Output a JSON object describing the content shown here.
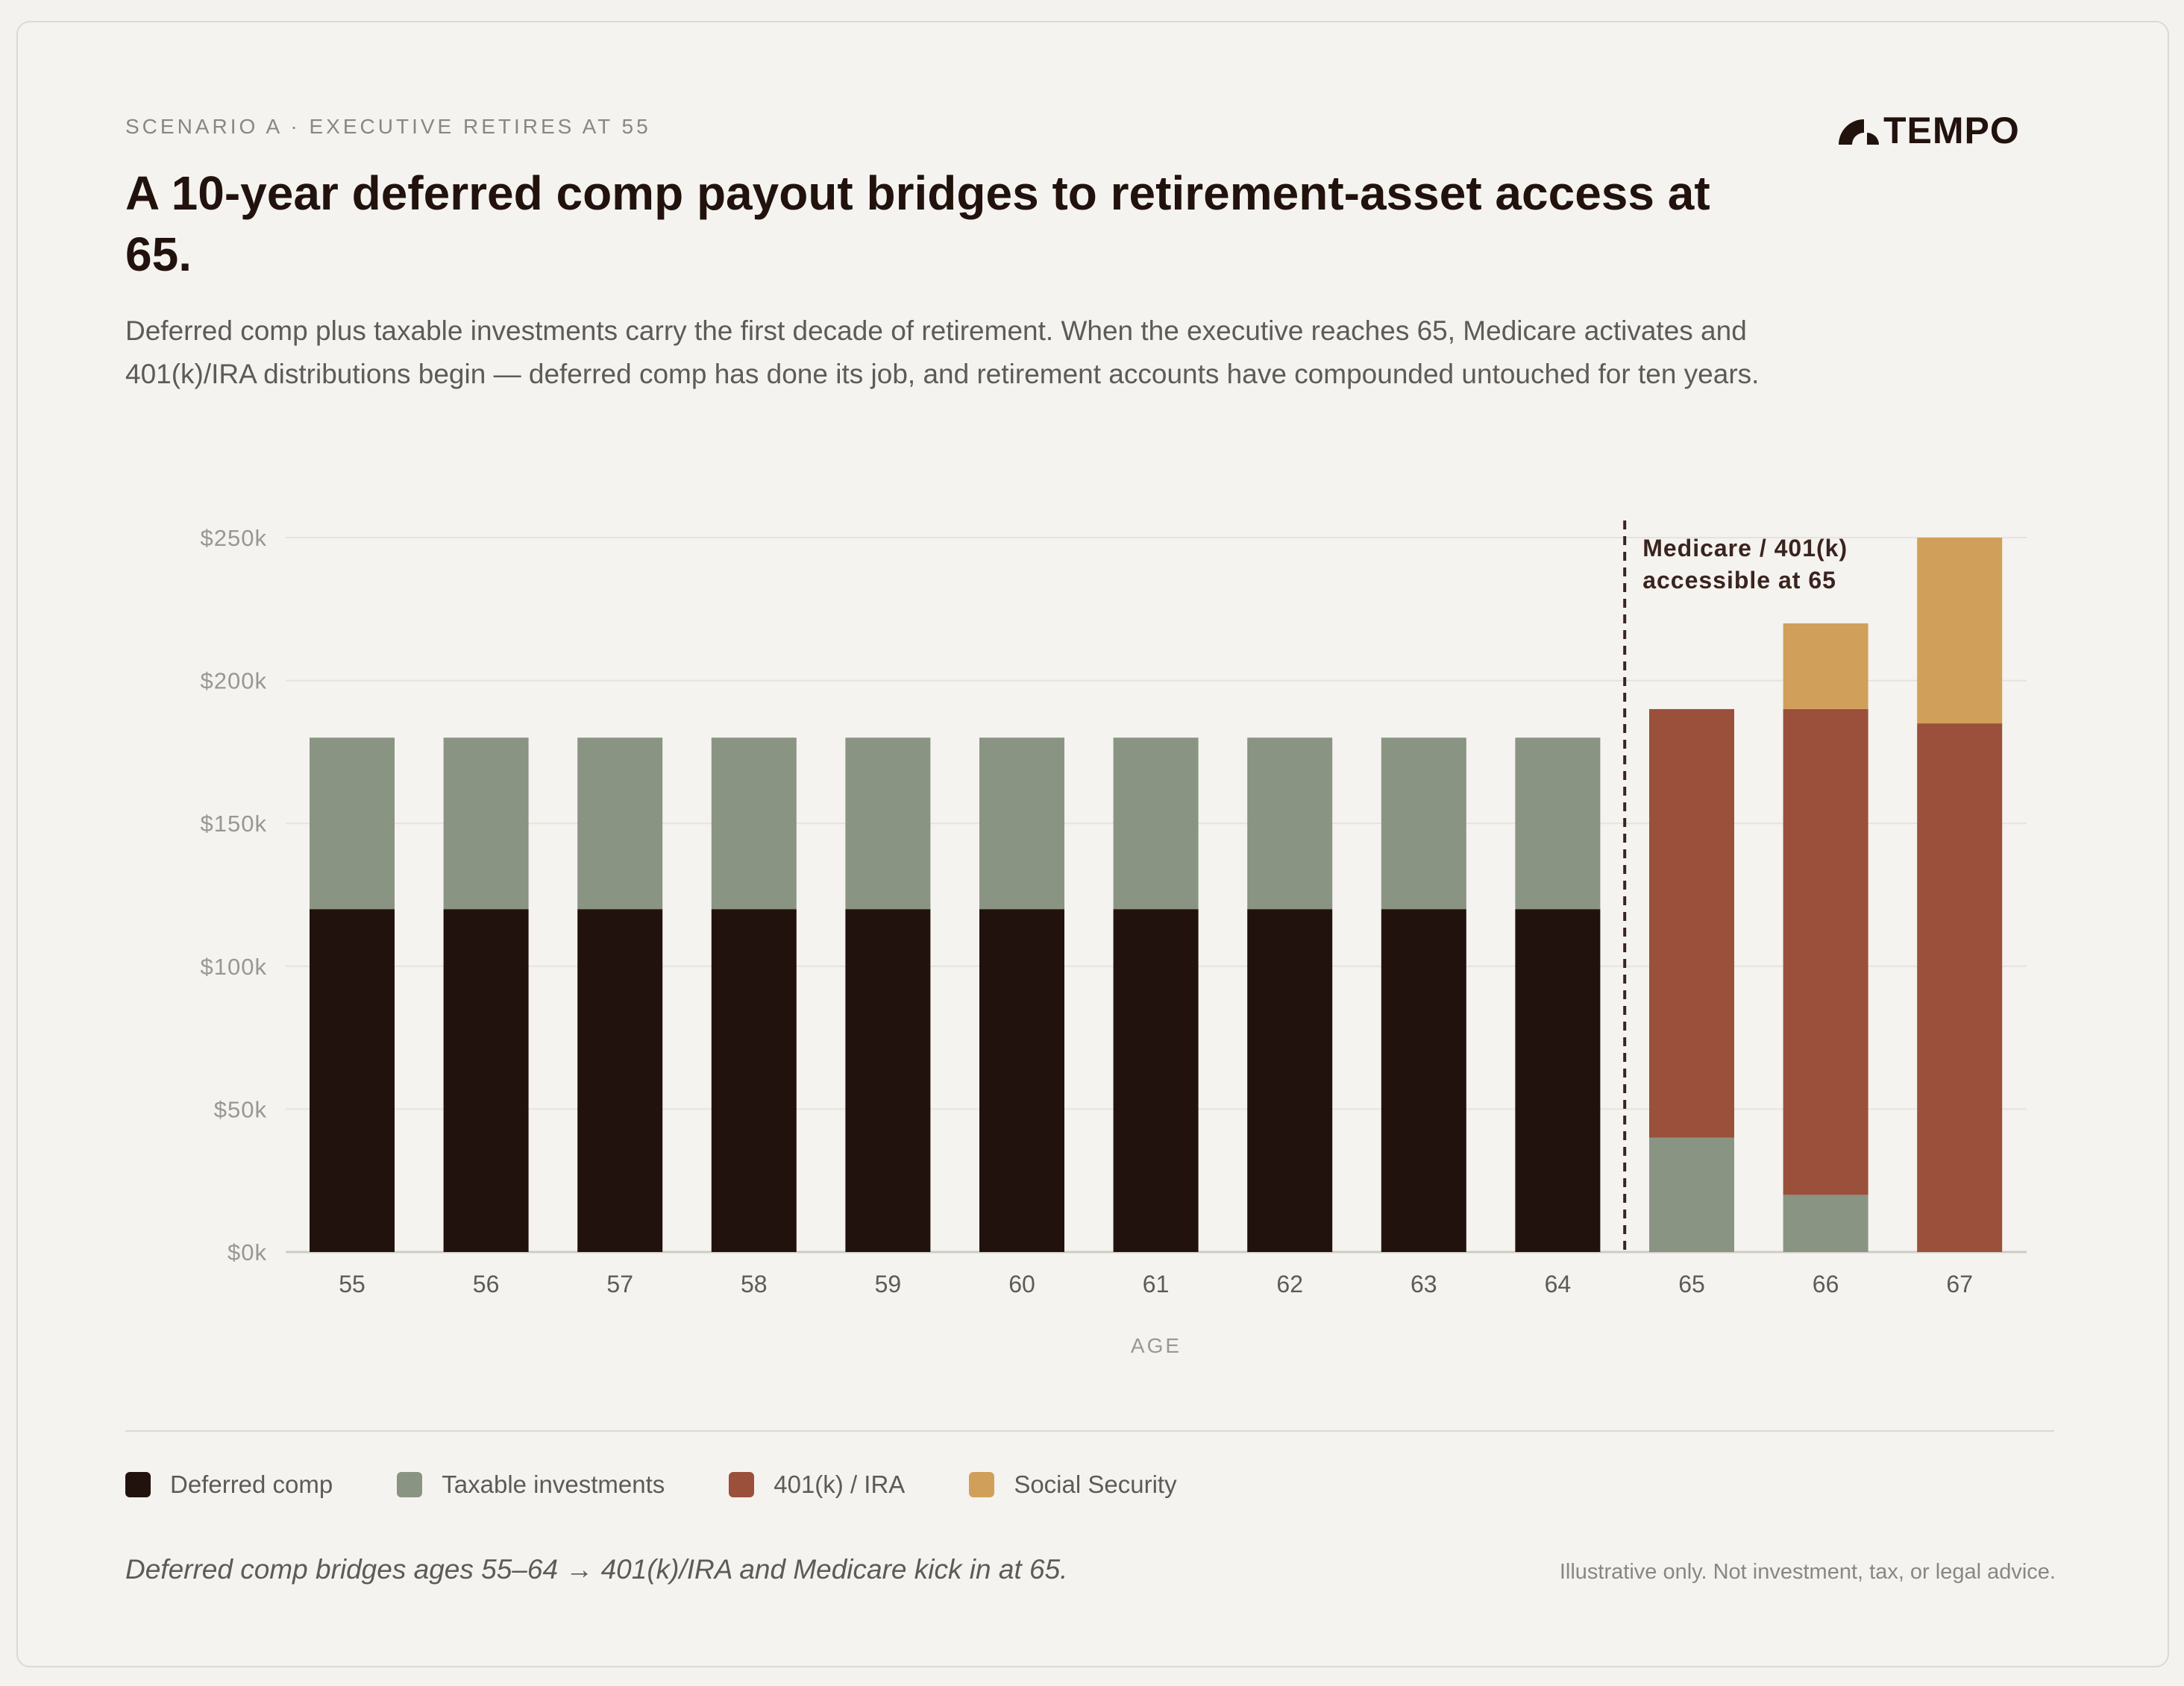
{
  "header": {
    "eyebrow": "SCENARIO A · EXECUTIVE RETIRES AT 55",
    "logo": "TEMPO",
    "title": "A 10-year deferred comp payout bridges to retirement-asset access at 65.",
    "subtitle": "Deferred comp plus taxable investments carry the first decade of retirement. When the executive reaches 65, Medicare activates and 401(k)/IRA distributions begin — deferred comp has done its job, and retirement accounts have compounded untouched for ten years."
  },
  "chart_data": {
    "type": "bar",
    "stacked": true,
    "xlabel": "AGE",
    "ylabel": "",
    "ylim": [
      0,
      250000
    ],
    "yticks": [
      0,
      50000,
      100000,
      150000,
      200000,
      250000
    ],
    "ytick_labels": [
      "$0k",
      "$50k",
      "$100k",
      "$150k",
      "$200k",
      "$250k"
    ],
    "grid": true,
    "categories": [
      "55",
      "56",
      "57",
      "58",
      "59",
      "60",
      "61",
      "62",
      "63",
      "64",
      "65",
      "66",
      "67"
    ],
    "series": [
      {
        "name": "Deferred comp",
        "color": "#22120d",
        "values": [
          120000,
          120000,
          120000,
          120000,
          120000,
          120000,
          120000,
          120000,
          120000,
          120000,
          0,
          0,
          0
        ]
      },
      {
        "name": "Taxable investments",
        "color": "#8a9483",
        "values": [
          60000,
          60000,
          60000,
          60000,
          60000,
          60000,
          60000,
          60000,
          60000,
          60000,
          40000,
          20000,
          0
        ]
      },
      {
        "name": "401(k) / IRA",
        "color": "#9a503a",
        "values": [
          0,
          0,
          0,
          0,
          0,
          0,
          0,
          0,
          0,
          0,
          150000,
          170000,
          185000
        ]
      },
      {
        "name": "Social Security",
        "color": "#d0a05a",
        "values": [
          0,
          0,
          0,
          0,
          0,
          0,
          0,
          0,
          0,
          0,
          0,
          30000,
          65000
        ]
      }
    ],
    "annotation": {
      "text_line1": "Medicare / 401(k)",
      "text_line2": "accessible at 65",
      "between": [
        "64",
        "65"
      ]
    },
    "legend_position": "bottom"
  },
  "footer": {
    "note": "Deferred comp bridges ages 55–64 → 401(k)/IRA and Medicare kick in at 65.",
    "disclaimer": "Illustrative only. Not investment, tax, or legal advice."
  }
}
